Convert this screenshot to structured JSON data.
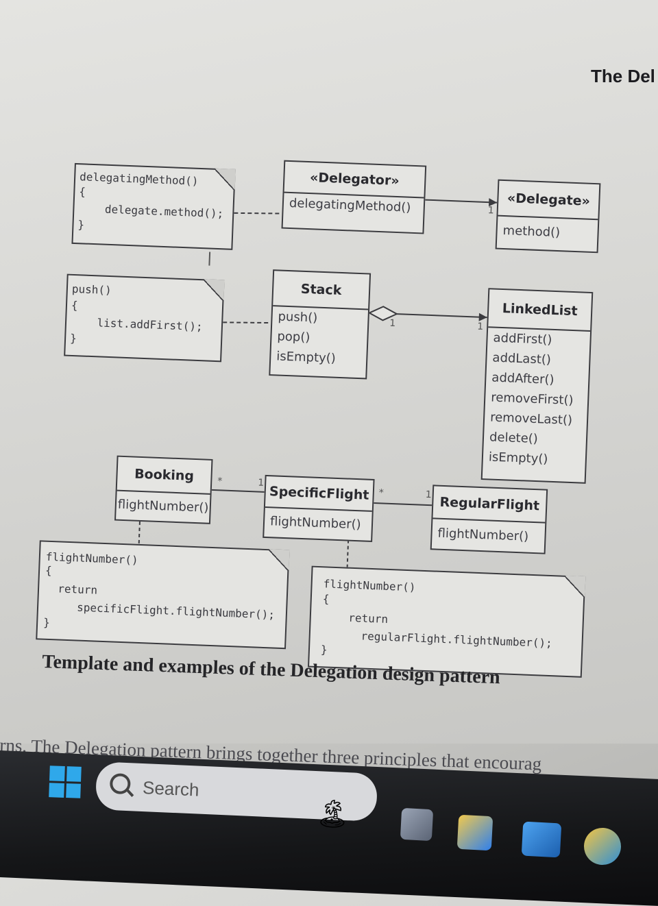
{
  "header": {
    "title": "The Del"
  },
  "diagram": {
    "delegator": {
      "stereotype": "«Delegator»",
      "ops": [
        "delegatingMethod()"
      ]
    },
    "delegate": {
      "stereotype": "«Delegate»",
      "ops": [
        "method()"
      ]
    },
    "stack": {
      "name": "Stack",
      "ops": [
        "push()",
        "pop()",
        "isEmpty()"
      ]
    },
    "linkedlist": {
      "name": "LinkedList",
      "ops": [
        "addFirst()",
        "addLast()",
        "addAfter()",
        "removeFirst()",
        "removeLast()",
        "delete()",
        "isEmpty()"
      ]
    },
    "booking": {
      "name": "Booking",
      "ops": [
        "flightNumber()"
      ]
    },
    "specificflight": {
      "name": "SpecificFlight",
      "ops": [
        "flightNumber()"
      ]
    },
    "regularflight": {
      "name": "RegularFlight",
      "ops": [
        "flightNumber()"
      ]
    },
    "notes": {
      "delegating": [
        "delegatingMethod()",
        "{",
        "    delegate.method();",
        "}"
      ],
      "push": [
        "push()",
        "{",
        "    list.addFirst();",
        "}"
      ],
      "booking": [
        "flightNumber()",
        "{",
        "  return",
        "     specificFlight.flightNumber();",
        "}"
      ],
      "specific": [
        "flightNumber()",
        "{",
        "    return",
        "      regularFlight.flightNumber();",
        "}"
      ]
    },
    "multiplicities": {
      "delegate_end": "1",
      "stack_end": "1",
      "linkedlist_end": "1",
      "booking_star": "*",
      "specific_one": "1",
      "specific_star": "*",
      "regular_one": "1"
    }
  },
  "caption": "Template and examples of the Delegation design pattern",
  "body_text": "rns. The Delegation pattern brings together three principles that encourag",
  "taskbar": {
    "search_placeholder": "Search",
    "start_color": "#2fa8ea"
  }
}
